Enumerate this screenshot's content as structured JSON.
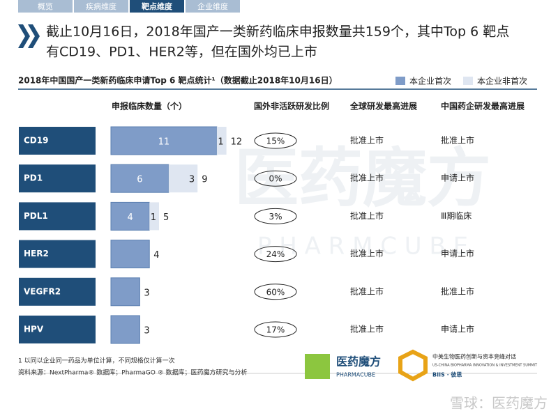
{
  "tabs": [
    "概览",
    "疾病维度",
    "靶点维度",
    "企业维度"
  ],
  "headline": [
    "截止10月16日，2018年国产一类新药临床申报数量共159个，其中Top 6 靶点",
    "有CD19、PD1、HER2等，但在国外均已上市"
  ],
  "chart_data": {
    "type": "bar",
    "orientation": "horizontal",
    "stacked": true,
    "title": "2018年中国国产一类新药临床申请Top 6 靶点统计¹（数据截止2018年10月16日）",
    "axis_label": "申报临床数量（个）",
    "categories": [
      "CD19",
      "PD1",
      "PDL1",
      "HER2",
      "VEGFR2",
      "HPV"
    ],
    "series": [
      {
        "name": "本企业首次",
        "color": "#7f9cc8",
        "values": [
          11,
          6,
          4,
          4,
          3,
          3
        ]
      },
      {
        "name": "本企业非首次",
        "color": "#dfe6f1",
        "values": [
          1,
          3,
          1,
          0,
          0,
          0
        ]
      }
    ],
    "totals": [
      12,
      9,
      5,
      4,
      3,
      3
    ]
  },
  "table": {
    "columns": [
      "国外非活跃研发比例",
      "全球研发最高进展",
      "中国药企研发最高进展"
    ],
    "rows": [
      [
        "15%",
        "批准上市",
        "批准上市"
      ],
      [
        "0%",
        "批准上市",
        "申请上市"
      ],
      [
        "3%",
        "批准上市",
        "Ⅲ期临床"
      ],
      [
        "24%",
        "批准上市",
        "申请上市"
      ],
      [
        "60%",
        "批准上市",
        "批准上市"
      ],
      [
        "17%",
        "批准上市",
        "申请上市"
      ]
    ]
  },
  "footnotes": [
    "1 以同以企业同一药品为单位计算，不同规格仅计算一次",
    "资料来源：NextPharma® 数据库；PharmaGO ® 数据库；医药魔方研究与分析"
  ],
  "logos": {
    "brand": "医药魔方",
    "brand_en": "PHARMACUBE",
    "summit": "中美生物医药创新与资本竞峰对话",
    "summit_en": "US-CHINA BIOPHARMA INNOVATION & INVESTMENT SUMMIT",
    "biis": "BIIS · 彼思"
  },
  "watermark": {
    "cn": "医药魔方",
    "en": "P H A R M C U B E"
  },
  "footer": "雪球：医药魔方"
}
